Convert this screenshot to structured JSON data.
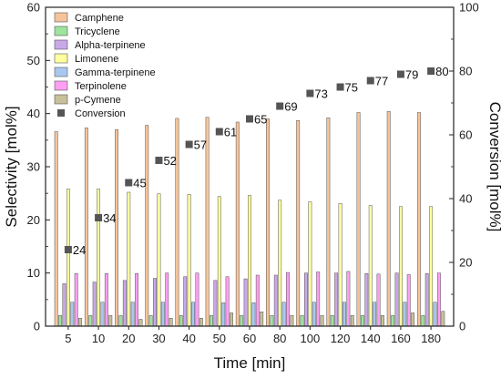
{
  "chart_data": {
    "type": "bar",
    "xlabel": "Time [min]",
    "ylabel": "Selectivity [mol%]",
    "y2label": "Conversion [mol%]",
    "ylim": [
      0,
      60
    ],
    "y2lim": [
      0,
      100
    ],
    "yticks": [
      0,
      10,
      20,
      30,
      40,
      50,
      60
    ],
    "y2ticks": [
      0,
      20,
      40,
      60,
      80,
      100
    ],
    "categories": [
      "5",
      "10",
      "20",
      "30",
      "40",
      "50",
      "60",
      "80",
      "100",
      "120",
      "140",
      "160",
      "180"
    ],
    "legend_position": "top-left",
    "series": [
      {
        "name": "Camphene",
        "color": "#f6c49a",
        "values": [
          36.6,
          37.3,
          37.0,
          37.8,
          39.1,
          39.3,
          38.4,
          39.0,
          38.7,
          39.2,
          40.2,
          40.4,
          40.2
        ]
      },
      {
        "name": "Tricyclene",
        "color": "#9ee39e",
        "values": [
          2.0,
          2.0,
          2.0,
          2.0,
          2.0,
          2.0,
          2.0,
          2.0,
          2.0,
          2.0,
          2.0,
          2.0,
          2.0
        ]
      },
      {
        "name": "Alpha-terpinene",
        "color": "#c9a8e8",
        "values": [
          8.0,
          8.3,
          8.6,
          9.0,
          9.3,
          8.6,
          8.9,
          9.6,
          10.0,
          10.0,
          9.9,
          10.0,
          9.9
        ]
      },
      {
        "name": "Limonene",
        "color": "#ffffa0",
        "values": [
          25.8,
          25.8,
          25.2,
          24.9,
          24.8,
          24.4,
          24.6,
          23.7,
          23.4,
          23.1,
          22.7,
          22.5,
          22.5
        ]
      },
      {
        "name": "Gamma-terpinene",
        "color": "#a9c8f0",
        "values": [
          4.5,
          4.5,
          4.5,
          4.5,
          4.5,
          4.4,
          4.4,
          4.5,
          4.5,
          4.5,
          4.5,
          4.5,
          4.5
        ]
      },
      {
        "name": "Terpinolene",
        "color": "#ff9ef2",
        "values": [
          9.9,
          9.9,
          9.9,
          10.0,
          10.0,
          9.3,
          9.6,
          10.1,
          10.2,
          10.3,
          9.8,
          9.7,
          10.0
        ]
      },
      {
        "name": "p-Cymene",
        "color": "#c7c09a",
        "values": [
          1.5,
          2.0,
          1.3,
          1.5,
          1.5,
          2.5,
          2.7,
          2.0,
          2.0,
          2.0,
          2.0,
          2.5,
          2.8
        ]
      }
    ],
    "conversion": {
      "name": "Conversion",
      "color": "#555555",
      "values": [
        24,
        34,
        45,
        52,
        57,
        61,
        65,
        69,
        73,
        75,
        77,
        79,
        80
      ],
      "labels": [
        "24",
        "34",
        "45",
        "52",
        "57",
        "61",
        "65",
        "69",
        "73",
        "75",
        "77",
        "79",
        "80"
      ]
    }
  }
}
